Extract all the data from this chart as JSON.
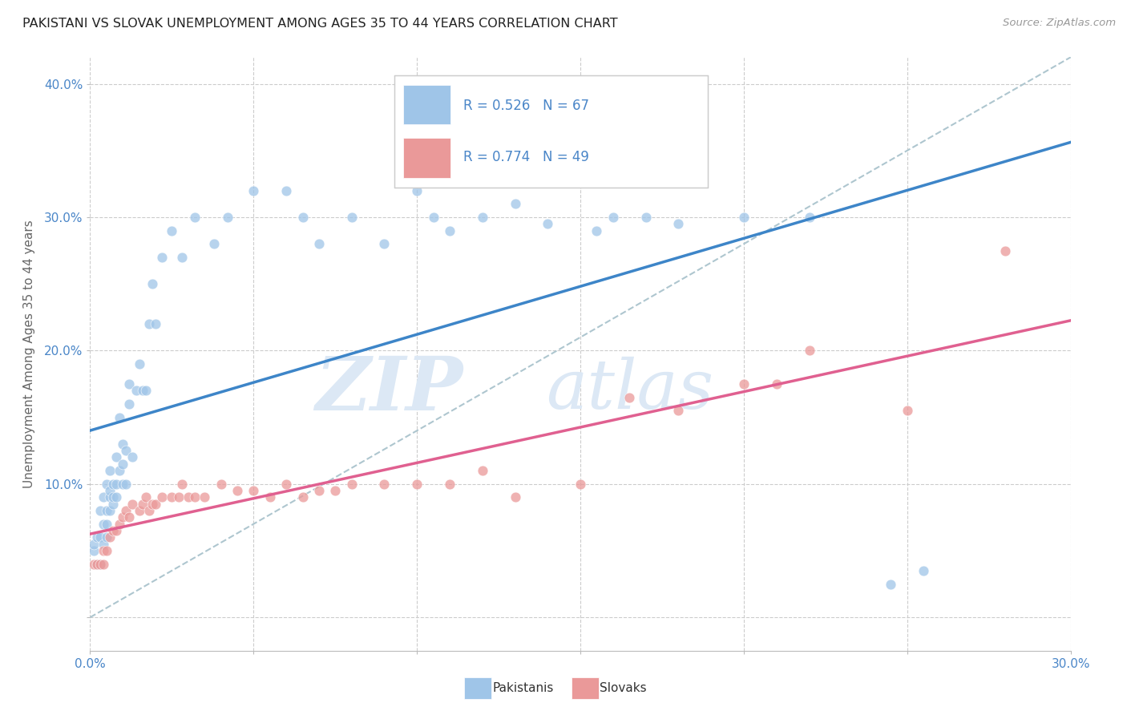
{
  "title": "PAKISTANI VS SLOVAK UNEMPLOYMENT AMONG AGES 35 TO 44 YEARS CORRELATION CHART",
  "source": "Source: ZipAtlas.com",
  "ylabel": "Unemployment Among Ages 35 to 44 years",
  "xmin": 0.0,
  "xmax": 0.3,
  "ymin": -0.025,
  "ymax": 0.42,
  "blue_color": "#9fc5e8",
  "pink_color": "#ea9999",
  "blue_line_color": "#3d85c8",
  "pink_line_color": "#e06090",
  "dashed_line_color": "#aec6cf",
  "watermark_color": "#dce8f5",
  "pakistanis_x": [
    0.001,
    0.001,
    0.002,
    0.002,
    0.003,
    0.003,
    0.003,
    0.004,
    0.004,
    0.004,
    0.005,
    0.005,
    0.005,
    0.005,
    0.006,
    0.006,
    0.006,
    0.006,
    0.007,
    0.007,
    0.007,
    0.008,
    0.008,
    0.008,
    0.009,
    0.009,
    0.01,
    0.01,
    0.01,
    0.011,
    0.011,
    0.012,
    0.012,
    0.013,
    0.014,
    0.015,
    0.016,
    0.017,
    0.018,
    0.019,
    0.02,
    0.022,
    0.025,
    0.028,
    0.032,
    0.038,
    0.042,
    0.05,
    0.06,
    0.065,
    0.07,
    0.08,
    0.09,
    0.1,
    0.105,
    0.11,
    0.12,
    0.13,
    0.14,
    0.155,
    0.16,
    0.17,
    0.18,
    0.2,
    0.22,
    0.245,
    0.255
  ],
  "pakistanis_y": [
    0.05,
    0.055,
    0.04,
    0.06,
    0.04,
    0.06,
    0.08,
    0.055,
    0.07,
    0.09,
    0.06,
    0.07,
    0.08,
    0.1,
    0.08,
    0.09,
    0.095,
    0.11,
    0.085,
    0.09,
    0.1,
    0.09,
    0.1,
    0.12,
    0.11,
    0.15,
    0.1,
    0.115,
    0.13,
    0.1,
    0.125,
    0.16,
    0.175,
    0.12,
    0.17,
    0.19,
    0.17,
    0.17,
    0.22,
    0.25,
    0.22,
    0.27,
    0.29,
    0.27,
    0.3,
    0.28,
    0.3,
    0.32,
    0.32,
    0.3,
    0.28,
    0.3,
    0.28,
    0.32,
    0.3,
    0.29,
    0.3,
    0.31,
    0.295,
    0.29,
    0.3,
    0.3,
    0.295,
    0.3,
    0.3,
    0.025,
    0.035
  ],
  "slovaks_x": [
    0.001,
    0.002,
    0.003,
    0.004,
    0.004,
    0.005,
    0.006,
    0.007,
    0.008,
    0.009,
    0.01,
    0.011,
    0.012,
    0.013,
    0.015,
    0.016,
    0.017,
    0.018,
    0.019,
    0.02,
    0.022,
    0.025,
    0.027,
    0.028,
    0.03,
    0.032,
    0.035,
    0.04,
    0.045,
    0.05,
    0.055,
    0.06,
    0.065,
    0.07,
    0.075,
    0.08,
    0.09,
    0.1,
    0.11,
    0.12,
    0.13,
    0.15,
    0.165,
    0.18,
    0.2,
    0.21,
    0.22,
    0.25,
    0.28
  ],
  "slovaks_y": [
    0.04,
    0.04,
    0.04,
    0.04,
    0.05,
    0.05,
    0.06,
    0.065,
    0.065,
    0.07,
    0.075,
    0.08,
    0.075,
    0.085,
    0.08,
    0.085,
    0.09,
    0.08,
    0.085,
    0.085,
    0.09,
    0.09,
    0.09,
    0.1,
    0.09,
    0.09,
    0.09,
    0.1,
    0.095,
    0.095,
    0.09,
    0.1,
    0.09,
    0.095,
    0.095,
    0.1,
    0.1,
    0.1,
    0.1,
    0.11,
    0.09,
    0.1,
    0.165,
    0.155,
    0.175,
    0.175,
    0.2,
    0.155,
    0.275
  ]
}
